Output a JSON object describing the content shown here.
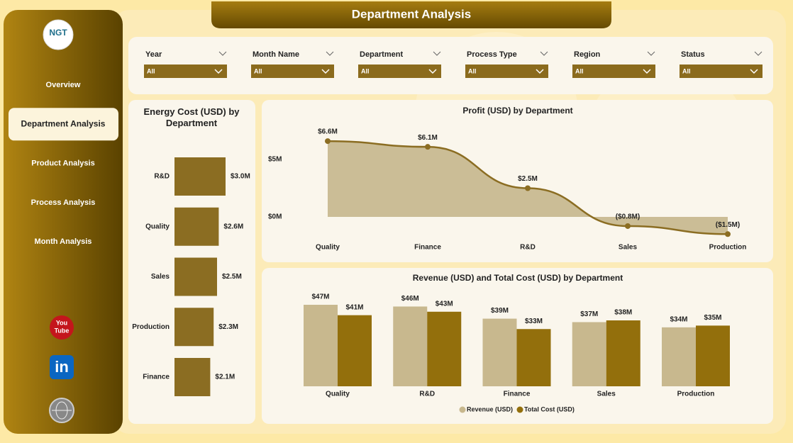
{
  "header": {
    "title": "Department Analysis"
  },
  "sidebar": {
    "logo": "NGT",
    "nav": [
      "Overview",
      "Department Analysis",
      "Product Analysis",
      "Process Analysis",
      "Month Analysis"
    ],
    "active": 1,
    "youtube_icon": [
      "You",
      "Tube"
    ],
    "linkedin_icon": "in"
  },
  "filters": [
    {
      "label": "Year",
      "value": "All"
    },
    {
      "label": "Month Name",
      "value": "All"
    },
    {
      "label": "Department",
      "value": "All"
    },
    {
      "label": "Process Type",
      "value": "All"
    },
    {
      "label": "Region",
      "value": "All"
    },
    {
      "label": "Status",
      "value": "All"
    }
  ],
  "chart_data": [
    {
      "type": "hbar",
      "title": "Energy Cost (USD) by Department",
      "categories": [
        "R&D",
        "Quality",
        "Sales",
        "Production",
        "Finance"
      ],
      "values": [
        3.0,
        2.6,
        2.5,
        2.3,
        2.1
      ],
      "value_labels": [
        "$3.0M",
        "$2.6M",
        "$2.5M",
        "$2.3M",
        "$2.1M"
      ],
      "color": "#8b6d22"
    },
    {
      "type": "area",
      "title": "Profit (USD) by Department",
      "categories": [
        "Quality",
        "Finance",
        "R&D",
        "Sales",
        "Production"
      ],
      "values": [
        6.6,
        6.1,
        2.5,
        -0.8,
        -1.5
      ],
      "value_labels": [
        "$6.6M",
        "$6.1M",
        "$2.5M",
        "($0.8M)",
        "($1.5M)"
      ],
      "ylim": [
        -2,
        7.5
      ],
      "yticks": [
        {
          "value": 5,
          "label": "$5M"
        },
        {
          "value": 0,
          "label": "$0M"
        }
      ],
      "color": "#8b6d22",
      "fill": "#cbbd96"
    },
    {
      "type": "grouped_bar",
      "title": "Revenue (USD) and Total Cost (USD) by Department",
      "categories": [
        "Quality",
        "R&D",
        "Finance",
        "Sales",
        "Production"
      ],
      "series": [
        {
          "name": "Revenue (USD)",
          "color": "#c8b88e",
          "values": [
            47,
            46,
            39,
            37,
            34
          ],
          "value_labels": [
            "$47M",
            "$46M",
            "$39M",
            "$37M",
            "$34M"
          ]
        },
        {
          "name": "Total Cost (USD)",
          "color": "#936f0c",
          "values": [
            41,
            43,
            33,
            38,
            35
          ],
          "value_labels": [
            "$41M",
            "$43M",
            "$33M",
            "$38M",
            "$35M"
          ]
        }
      ],
      "legend": "bottom"
    }
  ]
}
